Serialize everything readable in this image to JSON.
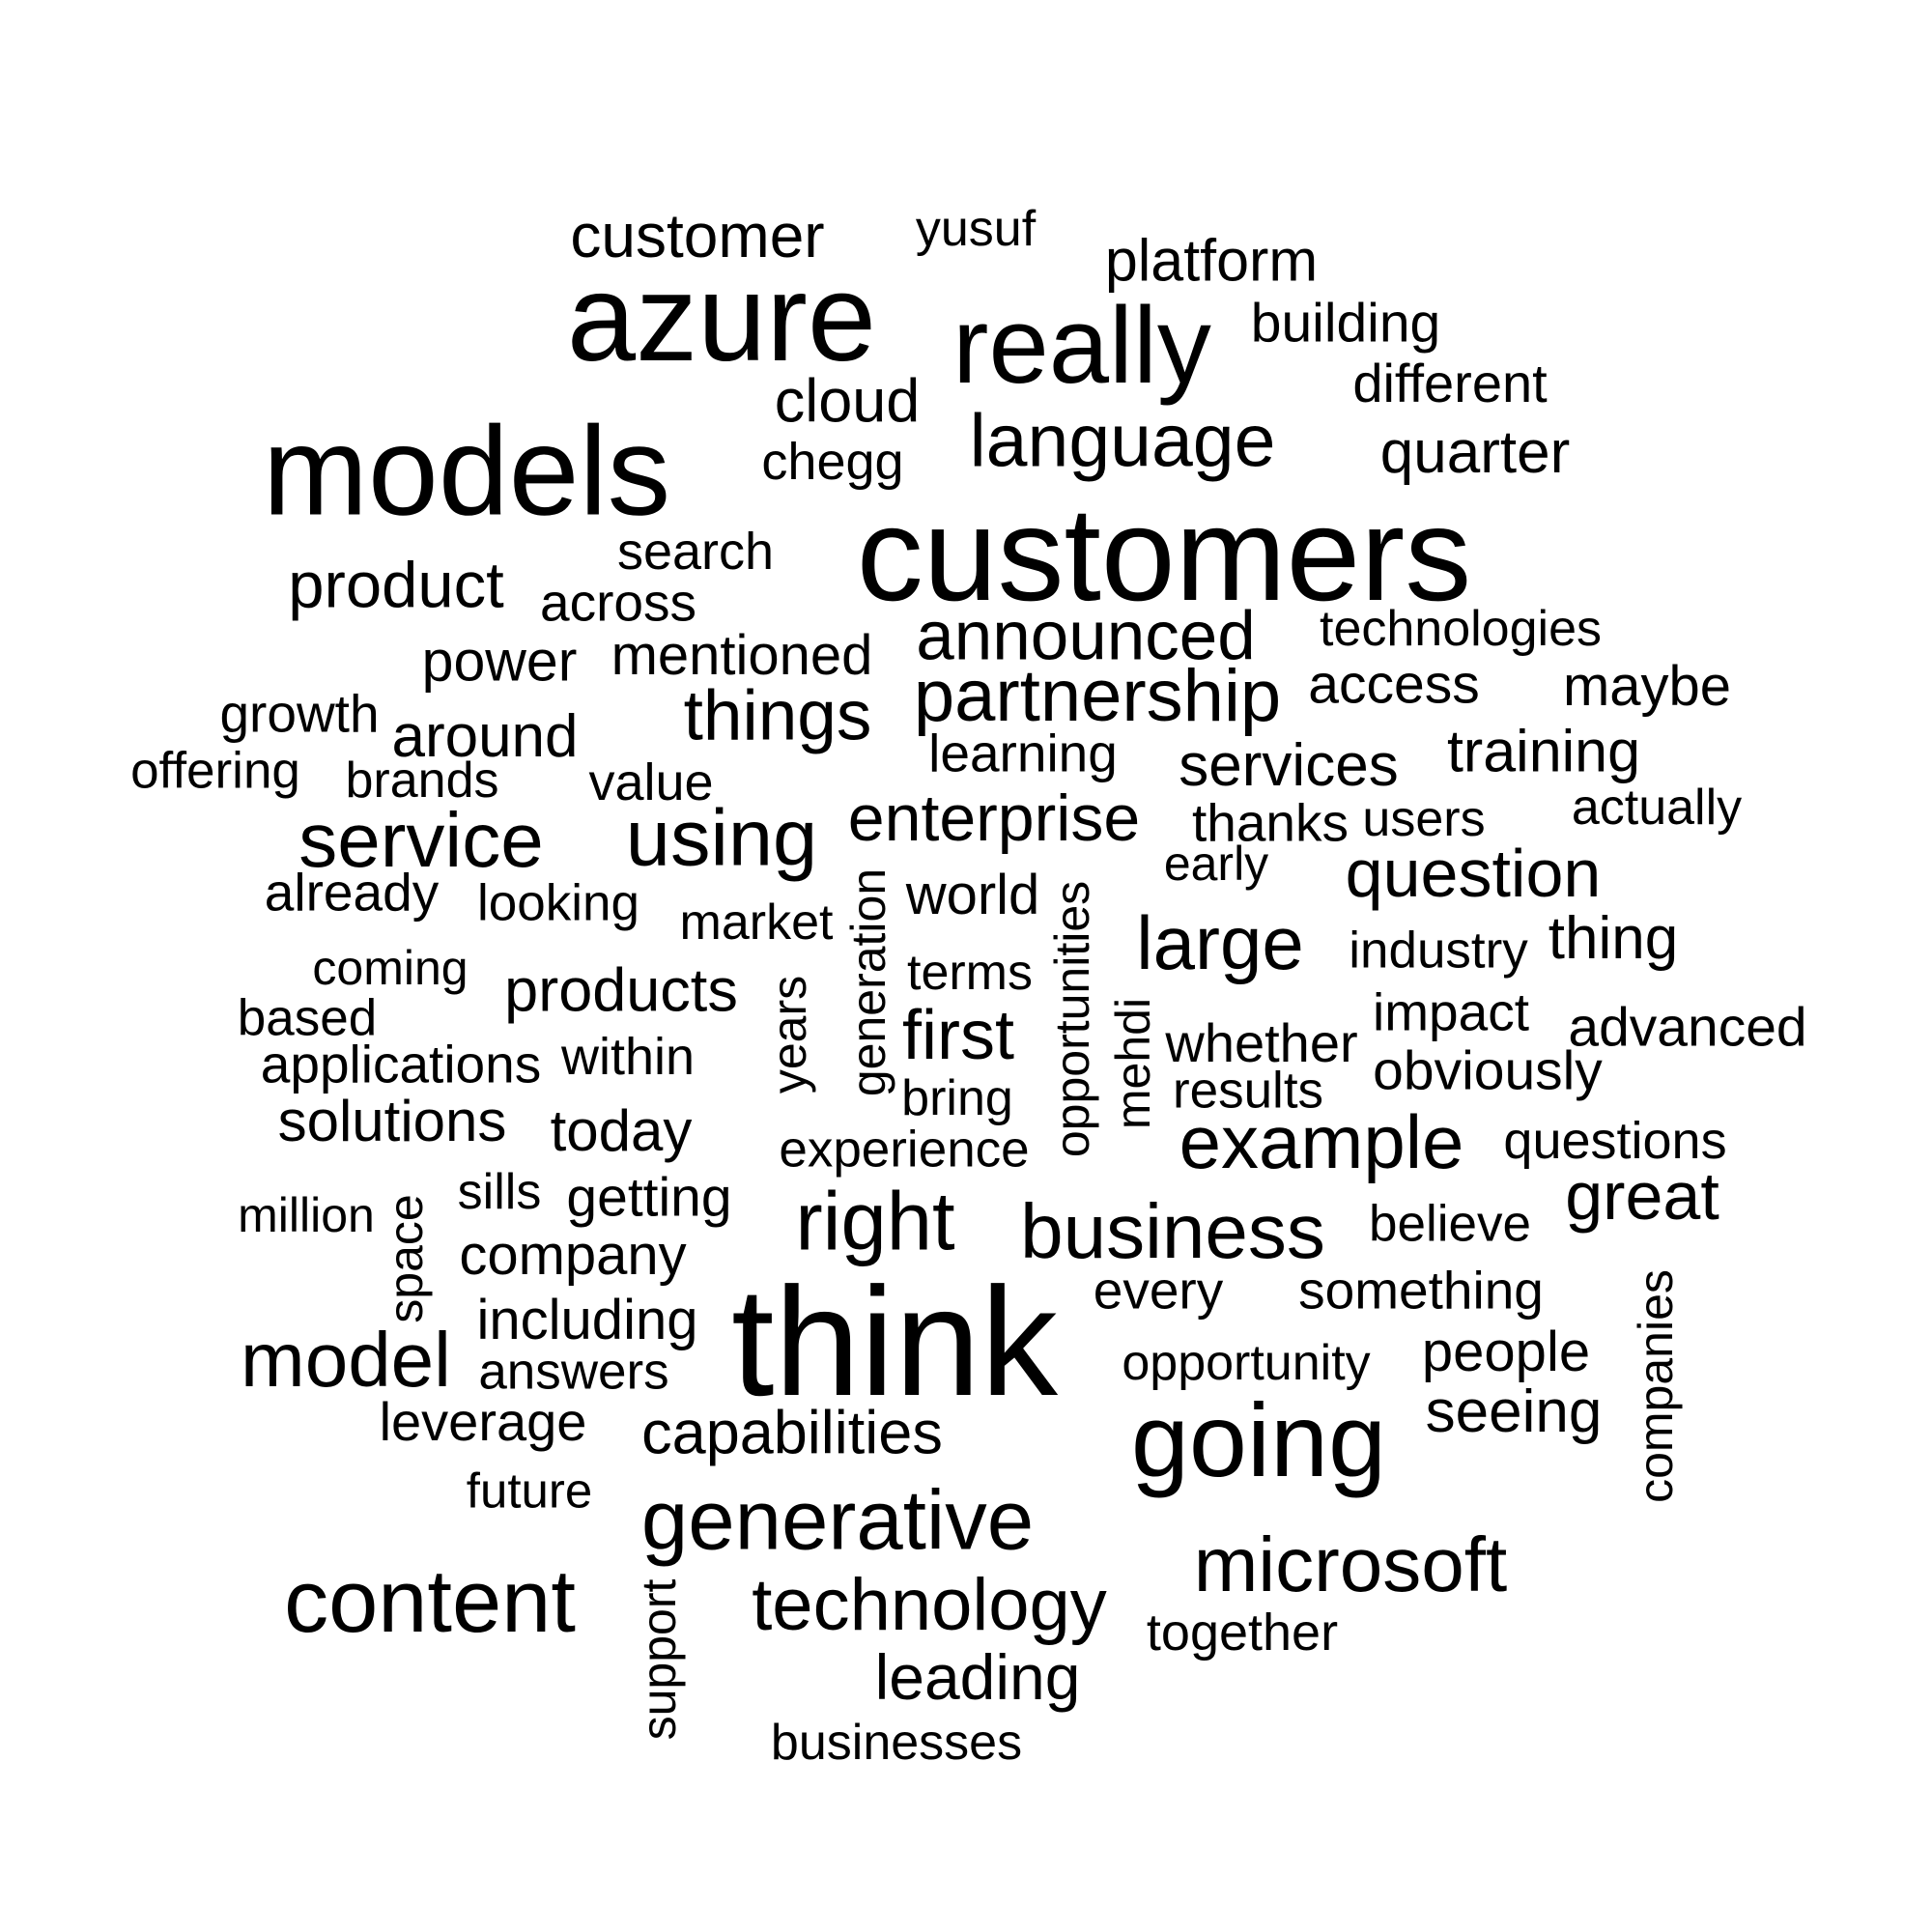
{
  "words": [
    "customer",
    "yusuf",
    "platform",
    "azure",
    "really",
    "building",
    "different",
    "cloud",
    "models",
    "chegg",
    "language",
    "quarter",
    "search",
    "customers",
    "product",
    "across",
    "announced",
    "technologies",
    "power",
    "mentioned",
    "partnership",
    "access",
    "maybe",
    "growth",
    "things",
    "around",
    "offering",
    "brands",
    "value",
    "learning",
    "services",
    "training",
    "service",
    "using",
    "enterprise",
    "thanks",
    "users",
    "actually",
    "already",
    "early",
    "question",
    "looking",
    "market",
    "world",
    "generation",
    "opportunities",
    "coming",
    "large",
    "industry",
    "thing",
    "terms",
    "based",
    "products",
    "years",
    "impact",
    "advanced",
    "first",
    "mehdi",
    "whether",
    "applications",
    "within",
    "obviously",
    "results",
    "bring",
    "solutions",
    "today",
    "experience",
    "example",
    "questions",
    "million",
    "space",
    "sills",
    "getting",
    "right",
    "business",
    "great",
    "believe",
    "company",
    "every",
    "something",
    "think",
    "including",
    "model",
    "answers",
    "opportunity",
    "people",
    "companies",
    "leverage",
    "capabilities",
    "seeing",
    "going",
    "future",
    "generative",
    "microsoft",
    "content",
    "support",
    "technology",
    "together",
    "leading",
    "businesses"
  ],
  "words_rotated": [
    "generation",
    "opportunities",
    "years",
    "mehdi",
    "space",
    "companies",
    "support"
  ]
}
